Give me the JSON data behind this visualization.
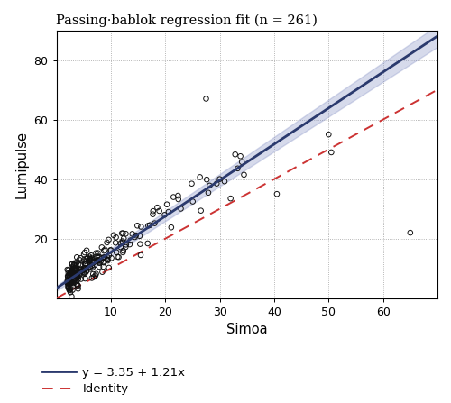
{
  "title": "Passing·bablok regression fit (n = 261)",
  "xlabel": "Simoa",
  "ylabel": "Lumipulse",
  "xlim": [
    0,
    70
  ],
  "ylim": [
    0,
    90
  ],
  "xticks": [
    10,
    20,
    30,
    40,
    50,
    60
  ],
  "yticks": [
    20,
    40,
    60,
    80
  ],
  "regression_intercept": 3.35,
  "regression_slope": 1.21,
  "ci_lower_intercept": 2.5,
  "ci_lower_slope": 1.17,
  "ci_upper_intercept": 4.2,
  "ci_upper_slope": 1.25,
  "regression_color": "#2b3a6e",
  "ci_fill_color": "#8b96c8",
  "identity_color": "#cc3333",
  "background_color": "#ffffff",
  "scatter_facecolor": "none",
  "scatter_edgecolor": "#111111",
  "scatter_size": 16,
  "scatter_lw": 0.7,
  "legend_label_regression": "y = 3.35 + 1.21x",
  "legend_label_identity": "Identity",
  "title_fontsize": 10.5,
  "label_fontsize": 10.5,
  "tick_fontsize": 9,
  "legend_fontsize": 9.5
}
